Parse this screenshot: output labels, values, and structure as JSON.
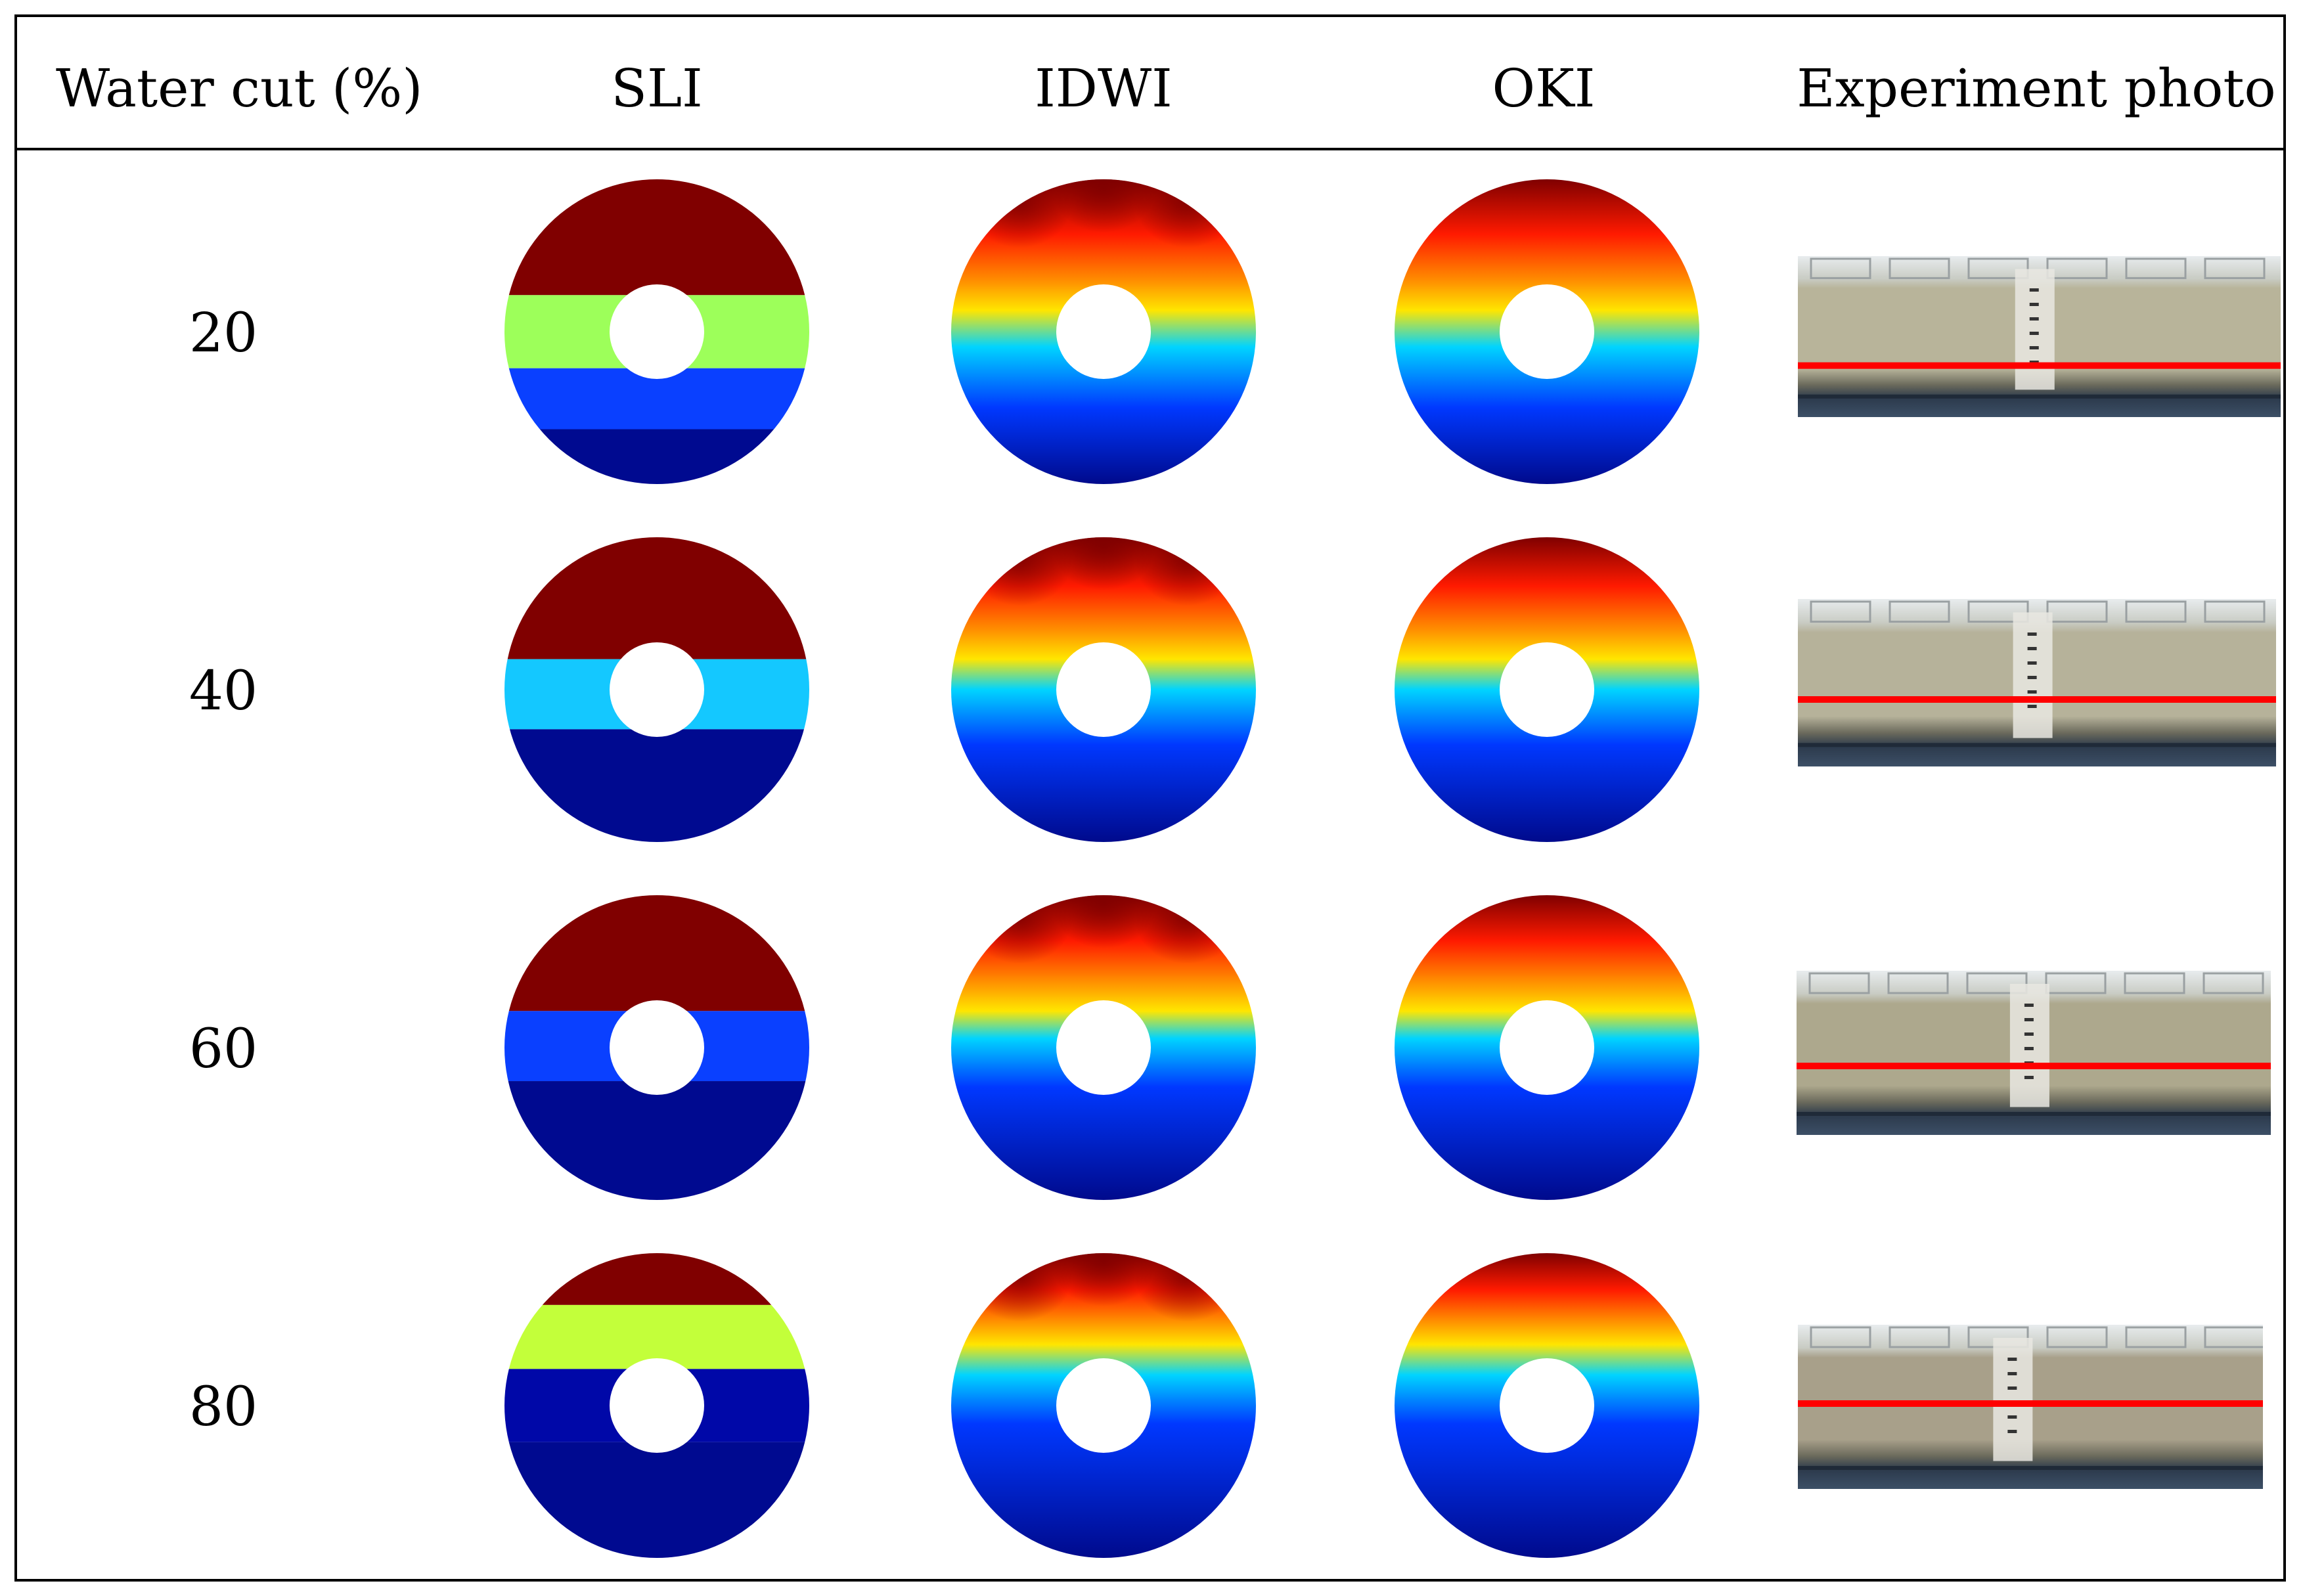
{
  "headers": [
    "Water cut (%)",
    "SLI",
    "IDWI",
    "OKI",
    "Experiment photo"
  ],
  "rows": [
    {
      "water_cut": "20",
      "sli_bands": [
        "#800000",
        "#9dff5a",
        "#0a40ff",
        "#000a90"
      ],
      "photo_tone": "#b8b49a"
    },
    {
      "water_cut": "40",
      "sli_bands": [
        "#800000",
        "#14c8ff",
        "#000a90"
      ],
      "photo_tone": "#b6b29a"
    },
    {
      "water_cut": "60",
      "sli_bands": [
        "#800000",
        "#0a40ff",
        "#000a90"
      ],
      "photo_tone": "#ada88d"
    },
    {
      "water_cut": "80",
      "sli_bands": [
        "#800000",
        "#c3ff3a",
        "#0008a8",
        "#000a90"
      ],
      "photo_tone": "#a8a08a"
    }
  ],
  "colormap": {
    "red_dark": "#7f0000",
    "red": "#ff1a00",
    "orange": "#ff8c00",
    "yellow": "#ffe600",
    "cyan": "#00d4ff",
    "blue": "#0038ff",
    "navy": "#000a8c"
  },
  "photo_line_color": "#ff0000"
}
